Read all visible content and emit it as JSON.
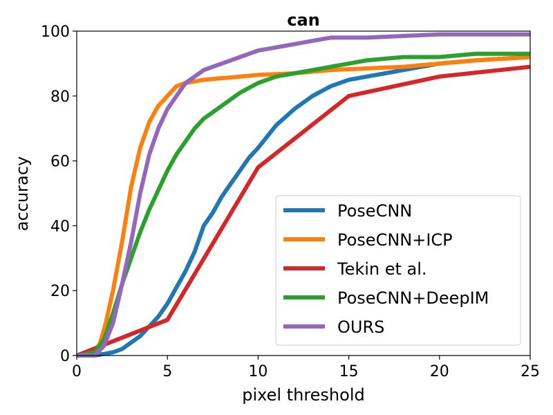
{
  "chart_data": {
    "type": "line",
    "title": "can",
    "xlabel": "pixel threshold",
    "ylabel": "accuracy",
    "xlim": [
      0,
      25
    ],
    "ylim": [
      0,
      100
    ],
    "xticks": [
      "0",
      "5",
      "10",
      "15",
      "20",
      "25"
    ],
    "yticks": [
      "0",
      "20",
      "40",
      "60",
      "80",
      "100"
    ],
    "grid": false,
    "legend_position": "lower-right",
    "series": [
      {
        "name": "PoseCNN",
        "color": "#1f77b4",
        "x": [
          0,
          1,
          1.5,
          2,
          2.5,
          3,
          3.5,
          4,
          4.5,
          5,
          5.5,
          6,
          6.5,
          7,
          7.5,
          8,
          8.5,
          9,
          9.5,
          10,
          11,
          12,
          13,
          14,
          15,
          16,
          17,
          18,
          19,
          20,
          22,
          25
        ],
        "y": [
          0,
          0,
          0.5,
          1,
          2,
          4,
          6,
          9,
          12,
          16,
          21,
          26,
          32,
          40,
          44,
          49,
          53,
          57,
          61,
          64,
          71,
          76,
          80,
          83,
          85,
          86,
          87,
          88,
          89,
          90,
          91,
          92
        ]
      },
      {
        "name": "PoseCNN+ICP",
        "color": "#ff7f0e",
        "x": [
          0,
          1,
          1.3,
          1.6,
          2,
          2.5,
          3,
          3.5,
          4,
          4.5,
          5,
          5.5,
          6,
          6.5,
          7,
          8,
          9,
          10,
          12,
          14,
          16,
          18,
          20,
          22,
          25
        ],
        "y": [
          0,
          1,
          4,
          10,
          20,
          35,
          52,
          64,
          72,
          77,
          80,
          83,
          84,
          84.5,
          85,
          85.5,
          86,
          86.5,
          87,
          88,
          88.5,
          89,
          90,
          91,
          92
        ]
      },
      {
        "name": "Tekin et al.",
        "color": "#d62728",
        "x": [
          0,
          5,
          10,
          15,
          20,
          25
        ],
        "y": [
          0,
          11,
          58,
          80,
          86,
          89
        ]
      },
      {
        "name": "PoseCNN+DeepIM",
        "color": "#2ca02c",
        "x": [
          0,
          1,
          1.5,
          2,
          2.5,
          3,
          3.5,
          4,
          4.5,
          5,
          5.5,
          6,
          6.5,
          7,
          7.5,
          8,
          9,
          10,
          11,
          12,
          13,
          14,
          15,
          16,
          18,
          20,
          22,
          25
        ],
        "y": [
          0,
          1,
          5,
          13,
          22,
          30,
          38,
          45,
          51,
          57,
          62,
          66,
          70,
          73,
          75,
          77,
          81,
          84,
          86,
          87,
          88,
          89,
          90,
          91,
          92,
          92,
          93,
          93
        ]
      },
      {
        "name": "OURS",
        "color": "#9467bd",
        "x": [
          0,
          1,
          1.5,
          2,
          2.5,
          3,
          3.5,
          4,
          4.5,
          5,
          5.5,
          6,
          6.5,
          7,
          7.5,
          8,
          9,
          10,
          11,
          12,
          13,
          14,
          16,
          18,
          20,
          25
        ],
        "y": [
          0,
          0,
          3,
          10,
          22,
          35,
          50,
          62,
          70,
          76,
          80,
          84,
          86,
          88,
          89,
          90,
          92,
          94,
          95,
          96,
          97,
          98,
          98,
          98.5,
          99,
          99
        ]
      }
    ]
  }
}
